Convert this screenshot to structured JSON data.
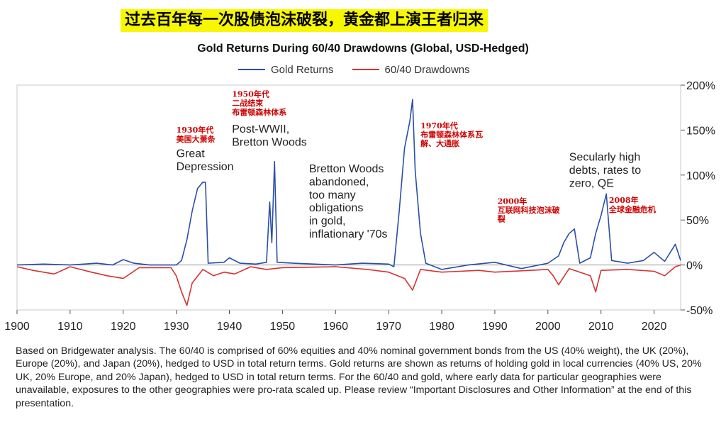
{
  "banner": "过去百年每一次股债泡沫破裂，黄金都上演王者归来",
  "chart_data": {
    "type": "line",
    "title": "Gold Returns During 60/40 Drawdowns (Global, USD-Hedged)",
    "xlim": [
      1900,
      2025
    ],
    "ylim": [
      -0.5,
      2.0
    ],
    "x_ticks": [
      "1900",
      "1910",
      "1920",
      "1930",
      "1940",
      "1950",
      "1960",
      "1970",
      "1980",
      "1990",
      "2000",
      "2010",
      "2020"
    ],
    "y_ticks": [
      {
        "value": 2.0,
        "label": "200%"
      },
      {
        "value": 1.5,
        "label": "150%"
      },
      {
        "value": 1.0,
        "label": "100%"
      },
      {
        "value": 0.5,
        "label": "50%"
      },
      {
        "value": 0.0,
        "label": "0%"
      },
      {
        "value": -0.5,
        "label": "-50%"
      }
    ],
    "legend_position": "top-center",
    "series": [
      {
        "name": "Gold Returns",
        "color": "#2a4fa8",
        "points": [
          [
            1900,
            0
          ],
          [
            1905,
            0.01
          ],
          [
            1910,
            0
          ],
          [
            1915,
            0.02
          ],
          [
            1918,
            0
          ],
          [
            1920,
            0.06
          ],
          [
            1922,
            0.02
          ],
          [
            1925,
            0
          ],
          [
            1930,
            0
          ],
          [
            1931,
            0.05
          ],
          [
            1932,
            0.28
          ],
          [
            1933,
            0.6
          ],
          [
            1934,
            0.85
          ],
          [
            1935,
            0.92
          ],
          [
            1935.5,
            0.92
          ],
          [
            1936,
            0.02
          ],
          [
            1939,
            0.03
          ],
          [
            1940,
            0.08
          ],
          [
            1942,
            0.02
          ],
          [
            1945,
            0.01
          ],
          [
            1947,
            0.03
          ],
          [
            1947.6,
            0.7
          ],
          [
            1948,
            0.25
          ],
          [
            1948.5,
            1.15
          ],
          [
            1949,
            0.03
          ],
          [
            1952,
            0.02
          ],
          [
            1960,
            0
          ],
          [
            1965,
            0.02
          ],
          [
            1970,
            0.01
          ],
          [
            1971,
            -0.02
          ],
          [
            1972,
            0.6
          ],
          [
            1973,
            1.3
          ],
          [
            1974,
            1.6
          ],
          [
            1974.5,
            1.84
          ],
          [
            1975,
            1.05
          ],
          [
            1976,
            0.35
          ],
          [
            1977,
            0.02
          ],
          [
            1980,
            -0.05
          ],
          [
            1985,
            0
          ],
          [
            1990,
            0.03
          ],
          [
            1995,
            -0.04
          ],
          [
            2000,
            0.02
          ],
          [
            2002,
            0.1
          ],
          [
            2003,
            0.25
          ],
          [
            2004,
            0.35
          ],
          [
            2005,
            0.4
          ],
          [
            2006,
            0.02
          ],
          [
            2008,
            0.08
          ],
          [
            2009,
            0.35
          ],
          [
            2010,
            0.55
          ],
          [
            2011,
            0.79
          ],
          [
            2012,
            0.05
          ],
          [
            2015,
            0.02
          ],
          [
            2018,
            0.05
          ],
          [
            2020,
            0.14
          ],
          [
            2022,
            0.04
          ],
          [
            2024,
            0.23
          ],
          [
            2025,
            0.05
          ]
        ]
      },
      {
        "name": "60/40 Drawdowns",
        "color": "#d63232",
        "points": [
          [
            1900,
            -0.02
          ],
          [
            1903,
            -0.06
          ],
          [
            1907,
            -0.1
          ],
          [
            1910,
            -0.02
          ],
          [
            1914,
            -0.08
          ],
          [
            1917,
            -0.12
          ],
          [
            1920,
            -0.15
          ],
          [
            1923,
            -0.03
          ],
          [
            1929,
            -0.03
          ],
          [
            1930,
            -0.12
          ],
          [
            1931,
            -0.3
          ],
          [
            1932,
            -0.45
          ],
          [
            1933,
            -0.2
          ],
          [
            1935,
            -0.05
          ],
          [
            1937,
            -0.12
          ],
          [
            1939,
            -0.08
          ],
          [
            1941,
            -0.1
          ],
          [
            1944,
            -0.02
          ],
          [
            1947,
            -0.05
          ],
          [
            1950,
            -0.03
          ],
          [
            1960,
            -0.02
          ],
          [
            1966,
            -0.05
          ],
          [
            1970,
            -0.08
          ],
          [
            1973,
            -0.15
          ],
          [
            1974.5,
            -0.28
          ],
          [
            1976,
            -0.05
          ],
          [
            1980,
            -0.08
          ],
          [
            1987,
            -0.06
          ],
          [
            1990,
            -0.08
          ],
          [
            2000,
            -0.05
          ],
          [
            2001,
            -0.12
          ],
          [
            2002,
            -0.22
          ],
          [
            2004,
            -0.04
          ],
          [
            2008,
            -0.12
          ],
          [
            2009,
            -0.3
          ],
          [
            2010,
            -0.06
          ],
          [
            2015,
            -0.05
          ],
          [
            2020,
            -0.07
          ],
          [
            2022,
            -0.12
          ],
          [
            2024,
            -0.02
          ],
          [
            2025,
            0
          ]
        ]
      }
    ],
    "annotations": [
      {
        "text": "Great\nDepression",
        "x": 1930,
        "y": 1.2,
        "color": "#222222",
        "size": 16
      },
      {
        "text": "1930年代\n美国大萧条",
        "x": 1930,
        "y": 1.47,
        "color": "#d00000",
        "size": 11
      },
      {
        "text": "Post-WWII,\nBretton Woods",
        "x": 1940.5,
        "y": 1.47,
        "color": "#222222",
        "size": 16
      },
      {
        "text": "1950年代\n二战结束\n布雷顿森林体系",
        "x": 1940.5,
        "y": 1.87,
        "color": "#d00000",
        "size": 11
      },
      {
        "text": "Bretton Woods\nabandoned,\ntoo many\nobligations\nin gold,\ninflationary '70s",
        "x": 1955,
        "y": 1.03,
        "color": "#222222",
        "size": 16
      },
      {
        "text": "1970年代\n布雷顿森林体系瓦\n解、大通胀",
        "x": 1976,
        "y": 1.52,
        "color": "#d00000",
        "size": 11
      },
      {
        "text": "2000年\n互联网科技泡沫破\n裂",
        "x": 1990.5,
        "y": 0.68,
        "color": "#d00000",
        "size": 11
      },
      {
        "text": "Secularly high\ndebts, rates to\nzero, QE",
        "x": 2004,
        "y": 1.16,
        "color": "#222222",
        "size": 16
      },
      {
        "text": "2008年\n全球金融危机",
        "x": 2011.5,
        "y": 0.69,
        "color": "#d00000",
        "size": 11
      }
    ]
  },
  "footnote": "Based on Bridgewater analysis. The 60/40 is comprised of 60% equities and 40% nominal government bonds from the US (40% weight), the UK (20%), Europe (20%), and Japan (20%), hedged to USD in total return terms. Gold returns are shown as returns of holding gold in local currencies (40% US, 20% UK, 20% Europe, and 20% Japan), hedged to USD in total return terms. For the 60/40 and gold, where early data for particular geographies were unavailable, exposures to the other geographies were pro-rata scaled up. Please review “Important Disclosures and Other Information” at the end of this presentation."
}
